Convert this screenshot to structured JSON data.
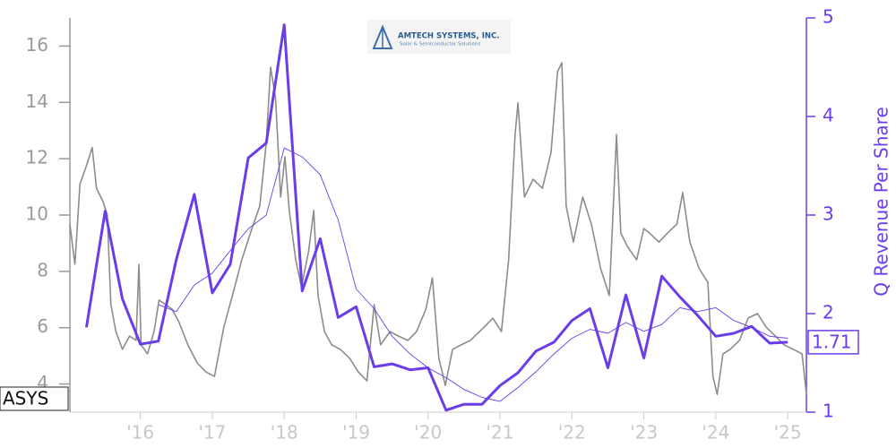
{
  "chart_data": {
    "type": "line",
    "annotations": [
      "AMTECH SYSTEMS, INC.",
      "Solar & Semiconductor Solutions"
    ],
    "y2label": "Q Revenue Per Share",
    "xlim": [
      2015.02,
      2025.26
    ],
    "xticks": [
      {
        "value": 2016,
        "label": "'16"
      },
      {
        "value": 2017,
        "label": "'17"
      },
      {
        "value": 2018,
        "label": "'18"
      },
      {
        "value": 2019,
        "label": "'19"
      },
      {
        "value": 2020,
        "label": "'20"
      },
      {
        "value": 2021,
        "label": "'21"
      },
      {
        "value": 2022,
        "label": "'22"
      },
      {
        "value": 2023,
        "label": "'23"
      },
      {
        "value": 2024,
        "label": "'24"
      },
      {
        "value": 2025,
        "label": "'25"
      }
    ],
    "ylim": [
      3,
      17
    ],
    "yticks": [
      4,
      6,
      8,
      10,
      12,
      14,
      16
    ],
    "y2lim": [
      1,
      5
    ],
    "y2ticks": [
      1,
      2,
      3,
      4,
      5
    ],
    "series": [
      {
        "name": "ASYS",
        "color": "#8c8c8c",
        "axis": "y",
        "width": 1.6,
        "x": [
          2015.02,
          2015.09,
          2015.16,
          2015.25,
          2015.33,
          2015.39,
          2015.48,
          2015.54,
          2015.59,
          2015.66,
          2015.75,
          2015.85,
          2015.94,
          2015.98,
          2016.01,
          2016.1,
          2016.19,
          2016.26,
          2016.35,
          2016.44,
          2016.54,
          2016.66,
          2016.79,
          2016.91,
          2017.03,
          2017.16,
          2017.28,
          2017.41,
          2017.53,
          2017.66,
          2017.75,
          2017.81,
          2017.88,
          2017.95,
          2018.01,
          2018.07,
          2018.16,
          2018.24,
          2018.34,
          2018.41,
          2018.47,
          2018.56,
          2018.66,
          2018.78,
          2018.91,
          2019.03,
          2019.15,
          2019.25,
          2019.34,
          2019.47,
          2019.59,
          2019.72,
          2019.84,
          2019.97,
          2020.06,
          2020.15,
          2020.24,
          2020.34,
          2020.46,
          2020.59,
          2020.78,
          2020.9,
          2021.02,
          2021.12,
          2021.21,
          2021.25,
          2021.34,
          2021.46,
          2021.59,
          2021.71,
          2021.8,
          2021.86,
          2021.92,
          2022.02,
          2022.15,
          2022.27,
          2022.4,
          2022.52,
          2022.62,
          2022.68,
          2022.77,
          2022.9,
          2023.0,
          2023.08,
          2023.21,
          2023.33,
          2023.46,
          2023.54,
          2023.64,
          2023.77,
          2023.89,
          2023.96,
          2024.02,
          2024.1,
          2024.2,
          2024.33,
          2024.45,
          2024.58,
          2024.7,
          2024.83,
          2024.95,
          2025.08,
          2025.2,
          2025.26
        ],
        "values": [
          9.68,
          8.25,
          11.1,
          11.75,
          12.4,
          10.95,
          10.48,
          10.0,
          6.82,
          5.86,
          5.23,
          5.7,
          5.55,
          8.25,
          5.39,
          5.07,
          5.86,
          6.98,
          6.82,
          6.66,
          6.18,
          5.39,
          4.75,
          4.43,
          4.27,
          6.02,
          7.14,
          8.41,
          9.36,
          10.32,
          12.55,
          15.25,
          14.14,
          10.64,
          12.07,
          10.16,
          8.41,
          7.45,
          8.73,
          10.16,
          7.14,
          5.86,
          5.39,
          5.23,
          4.91,
          4.43,
          4.11,
          6.82,
          5.39,
          5.86,
          5.7,
          5.55,
          5.86,
          6.66,
          7.77,
          4.91,
          3.95,
          5.23,
          5.39,
          5.55,
          6.02,
          6.34,
          5.86,
          8.41,
          12.86,
          13.98,
          10.64,
          11.27,
          10.95,
          12.23,
          15.09,
          15.41,
          10.32,
          9.04,
          10.64,
          9.68,
          8.09,
          7.14,
          12.86,
          9.36,
          8.89,
          8.41,
          9.52,
          9.36,
          9.04,
          9.36,
          9.68,
          10.8,
          9.04,
          8.09,
          7.61,
          4.27,
          3.63,
          5.07,
          5.23,
          5.55,
          6.34,
          6.5,
          6.02,
          5.7,
          5.39,
          5.23,
          5.07,
          3.63
        ]
      },
      {
        "name": "Q Revenue Per Share",
        "color": "#6a3de8",
        "axis": "y2",
        "width": 3,
        "x": [
          2015.25,
          2015.51,
          2015.75,
          2016.0,
          2016.25,
          2016.5,
          2016.75,
          2017.0,
          2017.25,
          2017.5,
          2017.75,
          2018.0,
          2018.25,
          2018.5,
          2018.75,
          2019.0,
          2019.25,
          2019.5,
          2019.75,
          2020.0,
          2020.25,
          2020.5,
          2020.75,
          2021.0,
          2021.25,
          2021.5,
          2021.75,
          2022.0,
          2022.25,
          2022.5,
          2022.75,
          2023.0,
          2023.25,
          2023.5,
          2023.75,
          2024.0,
          2024.25,
          2024.5,
          2024.75,
          2025.0
        ],
        "values": [
          1.86,
          3.04,
          2.15,
          1.69,
          1.72,
          2.55,
          3.21,
          2.21,
          2.5,
          3.58,
          3.73,
          4.93,
          2.23,
          2.76,
          1.96,
          2.07,
          1.46,
          1.49,
          1.43,
          1.45,
          1.02,
          1.08,
          1.08,
          1.27,
          1.4,
          1.62,
          1.71,
          1.93,
          2.05,
          1.45,
          2.19,
          1.55,
          2.38,
          2.17,
          1.98,
          1.77,
          1.8,
          1.87,
          1.7,
          1.71
        ]
      },
      {
        "color": "#6a3de8",
        "axis": "y2",
        "width": 0.9,
        "x": [
          2016.25,
          2016.5,
          2016.75,
          2017.0,
          2017.25,
          2017.5,
          2017.75,
          2018.0,
          2018.25,
          2018.5,
          2018.75,
          2019.0,
          2019.25,
          2019.5,
          2019.75,
          2020.0,
          2020.25,
          2020.5,
          2020.75,
          2021.0,
          2021.25,
          2021.5,
          2021.75,
          2022.0,
          2022.25,
          2022.5,
          2022.75,
          2023.0,
          2023.25,
          2023.5,
          2023.75,
          2024.0,
          2024.25,
          2024.5,
          2024.75,
          2025.0
        ],
        "values": [
          2.09,
          2.02,
          2.29,
          2.41,
          2.64,
          2.86,
          3.0,
          3.68,
          3.59,
          3.41,
          2.95,
          2.25,
          2.05,
          1.77,
          1.59,
          1.45,
          1.35,
          1.23,
          1.15,
          1.11,
          1.25,
          1.41,
          1.59,
          1.75,
          1.84,
          1.8,
          1.91,
          1.82,
          1.89,
          2.06,
          2.02,
          2.06,
          1.93,
          1.86,
          1.77,
          1.75
        ]
      }
    ]
  }
}
